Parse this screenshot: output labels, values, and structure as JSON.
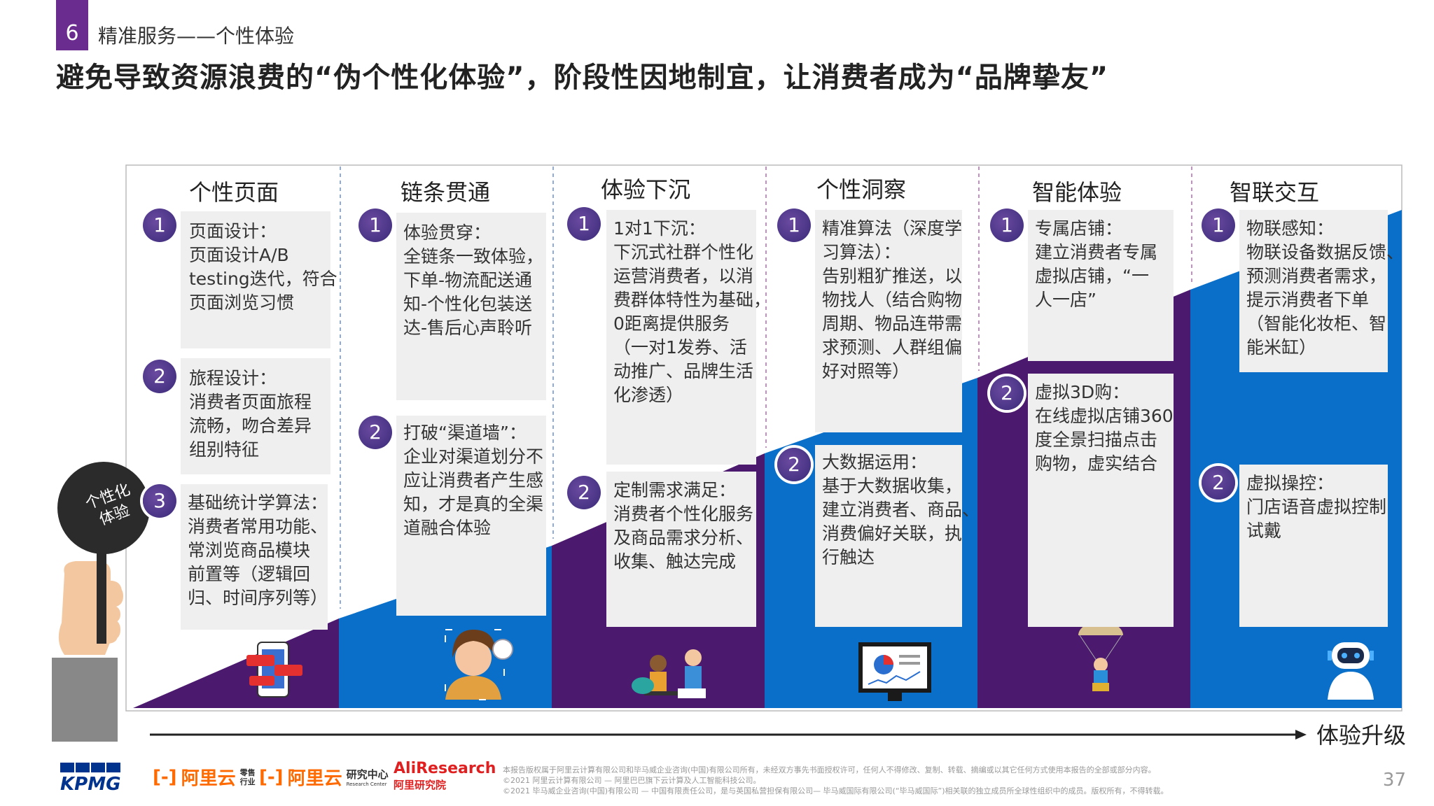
{
  "section": {
    "number": "6",
    "title": "精准服务——个性体验"
  },
  "headline": "避免导致资源浪费的“伪个性化体验”，阶段性因地制宜，让消费者成为“品牌挚友”",
  "badge": "个性化\n体验",
  "axis_label": "体验升级",
  "columns": [
    {
      "title": "个性页面",
      "items": [
        {
          "num": "1",
          "text": "页面设计：\n页面设计A/B\ntesting迭代，符合\n页面浏览习惯"
        },
        {
          "num": "2",
          "text": "旅程设计：\n消费者页面旅程\n流畅，吻合差异\n组别特征"
        },
        {
          "num": "3",
          "text": "基础统计学算法：\n消费者常用功能、\n常浏览商品模块\n前置等（逻辑回\n归、时间序列等）"
        }
      ]
    },
    {
      "title": "链条贯通",
      "items": [
        {
          "num": "1",
          "text": "体验贯穿：\n全链条一致体验，\n下单-物流配送通\n知-个性化包装送\n达-售后心声聆听"
        },
        {
          "num": "2",
          "text": "打破“渠道墙”：\n企业对渠道划分不\n应让消费者产生感\n知，才是真的全渠\n道融合体验"
        }
      ]
    },
    {
      "title": "体验下沉",
      "items": [
        {
          "num": "1",
          "text": "1对1下沉：\n下沉式社群个性化\n运营消费者，以消\n费群体特性为基础，\n0距离提供服务\n（一对1发券、活\n动推广、品牌生活\n化渗透）"
        },
        {
          "num": "2",
          "text": "定制需求满足：\n消费者个性化服务\n及商品需求分析、\n收集、触达完成"
        }
      ]
    },
    {
      "title": "个性洞察",
      "items": [
        {
          "num": "1",
          "text": "精准算法（深度学\n习算法）：\n告别粗犷推送，以\n物找人（结合购物\n周期、物品连带需\n求预测、人群组偏\n好对照等）"
        },
        {
          "num": "2",
          "text": "大数据运用：\n基于大数据收集，\n建立消费者、商品、\n消费偏好关联，执\n行触达"
        }
      ]
    },
    {
      "title": "智能体验",
      "items": [
        {
          "num": "1",
          "text": "专属店铺：\n建立消费者专属\n虚拟店铺，“一\n人一店”"
        },
        {
          "num": "2",
          "text": "虚拟3D购：\n在线虚拟店铺360\n度全景扫描点击\n购物，虚实结合"
        }
      ]
    },
    {
      "title": "智联交互",
      "items": [
        {
          "num": "1",
          "text": "物联感知：\n物联设备数据反馈、\n预测消费者需求，\n提示消费者下单\n（智能化妆柜、智\n能米缸）"
        },
        {
          "num": "2",
          "text": "虚拟操控：\n门店语音虚拟控制\n试戴"
        }
      ]
    }
  ],
  "logos": {
    "kpmg": "KPMG",
    "aliyun_retail": "阿里云",
    "aliyun_retail_sub": "零售\n行业",
    "aliyun_research": "阿里云",
    "aliyun_research_sub": "研究中心",
    "aliyun_research_en": "Research Center",
    "ali_research": "AliResearch",
    "ali_research_cn": "阿里研究院"
  },
  "footer_lines": [
    "本报告版权属于阿里云计算有限公司和毕马威企业咨询(中国)有限公司所有，未经双方事先书面授权许可，任何人不得修改、复制、转载、摘编或以其它任何方式使用本报告的全部或部分内容。",
    "©2021 阿里云计算有限公司 — 阿里巴巴旗下云计算及人工智能科技公司。",
    "©2021 毕马威企业咨询(中国)有限公司 — 中国有限责任公司，是与英国私营担保有限公司— 毕马威国际有限公司(“毕马威国际”)相关联的独立成员所全球性组织中的成员。版权所有，不得转载。"
  ],
  "page_number": "37",
  "colors": {
    "purple": "#4b1a6e",
    "blue": "#0a6fc8",
    "accent": "#6b2c8f"
  }
}
